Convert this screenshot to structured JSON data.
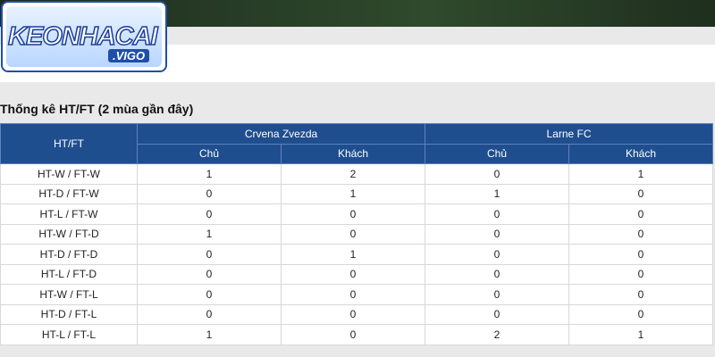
{
  "logo": {
    "text": "KEONHACAI",
    "sub": ".VIGO"
  },
  "section": {
    "title": "Thống kê HT/FT (2 mùa gần đây)"
  },
  "table": {
    "header_label": "HT/FT",
    "teams": [
      {
        "name": "Crvena Zvezda",
        "columns": [
          "Chủ",
          "Khách"
        ]
      },
      {
        "name": "Larne FC",
        "columns": [
          "Chủ",
          "Khách"
        ]
      }
    ],
    "rows": [
      {
        "label": "HT-W / FT-W",
        "values": [
          1,
          2,
          0,
          1
        ]
      },
      {
        "label": "HT-D / FT-W",
        "values": [
          0,
          1,
          1,
          0
        ]
      },
      {
        "label": "HT-L / FT-W",
        "values": [
          0,
          0,
          0,
          0
        ]
      },
      {
        "label": "HT-W / FT-D",
        "values": [
          1,
          0,
          0,
          0
        ]
      },
      {
        "label": "HT-D / FT-D",
        "values": [
          0,
          1,
          0,
          0
        ]
      },
      {
        "label": "HT-L / FT-D",
        "values": [
          0,
          0,
          0,
          0
        ]
      },
      {
        "label": "HT-W / FT-L",
        "values": [
          0,
          0,
          0,
          0
        ]
      },
      {
        "label": "HT-D / FT-L",
        "values": [
          0,
          0,
          0,
          0
        ]
      },
      {
        "label": "HT-L / FT-L",
        "values": [
          1,
          0,
          2,
          1
        ]
      }
    ]
  }
}
